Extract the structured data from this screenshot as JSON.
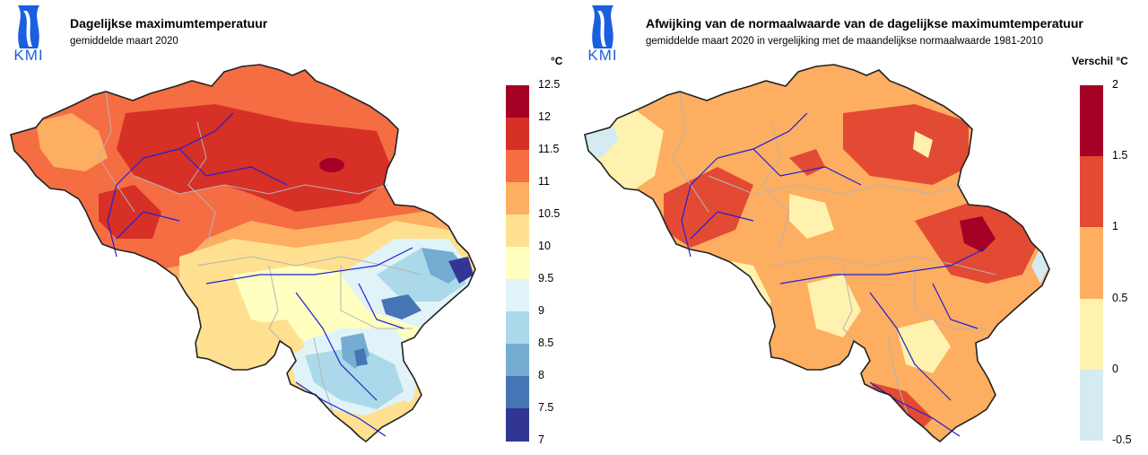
{
  "panels": [
    {
      "title": "Dagelijkse maximumtemperatuur",
      "subtitle": "gemiddelde maart 2020",
      "logo_text": "KMI",
      "unit": "°C",
      "legend": {
        "ticks": [
          "12.5",
          "12",
          "11.5",
          "11",
          "10.5",
          "10",
          "9.5",
          "9",
          "8.5",
          "8",
          "7.5",
          "7"
        ],
        "colors_top_to_bottom": [
          "#a50026",
          "#d73027",
          "#f46d43",
          "#fdae61",
          "#fee090",
          "#ffffbf",
          "#e0f3f8",
          "#abd9e9",
          "#74add1",
          "#4575b4",
          "#313695"
        ]
      }
    },
    {
      "title": "Afwijking van de normaalwaarde van de dagelijkse maximumtemperatuur",
      "subtitle": "gemiddelde maart 2020 in vergelijking met de maandelijkse normaalwaarde 1981-2010",
      "logo_text": "KMI",
      "unit": "Verschil °C",
      "legend": {
        "ticks": [
          "2",
          "1.5",
          "1",
          "0.5",
          "0",
          "-0.5"
        ],
        "colors_top_to_bottom": [
          "#a50026",
          "#e34a33",
          "#fdae61",
          "#fff2ae",
          "#d4ecf1"
        ]
      }
    }
  ],
  "colors": {
    "logo_blue": "#1a5fe0",
    "rivers": "#1f1fd6",
    "borders": "#b4b4b4",
    "country_outline": "#222222"
  }
}
